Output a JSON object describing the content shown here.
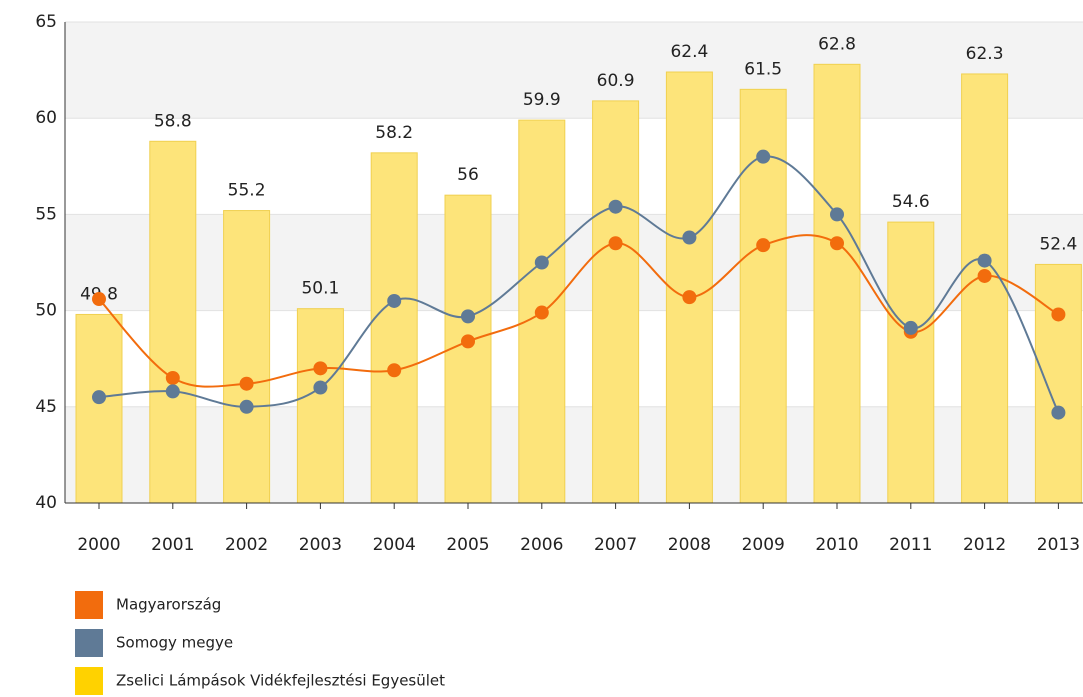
{
  "chart_data": {
    "type": "bar-line",
    "categories": [
      "2000",
      "2001",
      "2002",
      "2003",
      "2004",
      "2005",
      "2006",
      "2007",
      "2008",
      "2009",
      "2010",
      "2011",
      "2012",
      "2013"
    ],
    "series": [
      {
        "name": "Magyarország",
        "color": "#f26c0d",
        "kind": "line",
        "values": [
          50.6,
          46.5,
          46.2,
          47.0,
          46.9,
          48.4,
          49.9,
          53.5,
          50.7,
          53.4,
          53.5,
          48.9,
          51.8,
          49.8
        ]
      },
      {
        "name": "Somogy megye",
        "color": "#5f7a96",
        "kind": "line",
        "values": [
          45.5,
          45.8,
          45.0,
          46.0,
          50.5,
          49.7,
          52.5,
          55.4,
          53.8,
          58.0,
          55.0,
          49.1,
          52.6,
          44.7
        ]
      },
      {
        "name": "Zselici Lámpások Vidékfejlesztési Egyesület",
        "color": "#fde47a",
        "kind": "bar",
        "values": [
          49.8,
          58.8,
          55.2,
          50.1,
          58.2,
          56,
          59.9,
          60.9,
          62.4,
          61.5,
          62.8,
          54.6,
          62.3,
          52.4
        ]
      }
    ],
    "ylim": [
      40,
      65
    ],
    "yticks": [
      40,
      45,
      50,
      55,
      60,
      65
    ],
    "grid": true
  }
}
